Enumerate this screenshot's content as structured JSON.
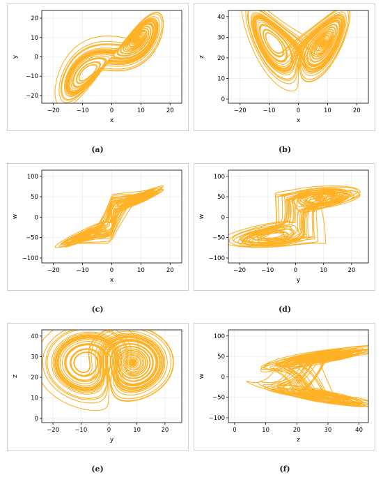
{
  "chart_data": [
    {
      "type": "line",
      "id": "a",
      "caption": "(a)",
      "xlabel": "x",
      "ylabel": "y",
      "xlim": [
        -24,
        24
      ],
      "ylim": [
        -24,
        24
      ],
      "xticks": [
        -20,
        -10,
        0,
        10,
        20
      ],
      "yticks": [
        -20,
        -10,
        0,
        10,
        20
      ],
      "grid": true,
      "series": [
        {
          "values": "phase-portrait",
          "color": "#FFA500",
          "curve": "lorenz-xy"
        }
      ]
    },
    {
      "type": "line",
      "id": "b",
      "caption": "(b)",
      "xlabel": "x",
      "ylabel": "z",
      "xlim": [
        -24,
        24
      ],
      "ylim": [
        -2,
        43
      ],
      "xticks": [
        -20,
        -10,
        0,
        10,
        20
      ],
      "yticks": [
        0,
        10,
        20,
        30,
        40
      ],
      "grid": true,
      "series": [
        {
          "values": "phase-portrait",
          "color": "#FFA500",
          "curve": "lorenz-xz"
        }
      ]
    },
    {
      "type": "line",
      "id": "c",
      "caption": "(c)",
      "xlabel": "x",
      "ylabel": "w",
      "xlim": [
        -24,
        24
      ],
      "ylim": [
        -112,
        115
      ],
      "xticks": [
        -20,
        -10,
        0,
        10,
        20
      ],
      "yticks": [
        -100,
        -50,
        0,
        50,
        100
      ],
      "grid": true,
      "series": [
        {
          "values": "phase-portrait",
          "color": "#FFA500",
          "curve": "hyper-xw"
        }
      ]
    },
    {
      "type": "line",
      "id": "d",
      "caption": "(d)",
      "xlabel": "y",
      "ylabel": "w",
      "xlim": [
        -24,
        26
      ],
      "ylim": [
        -112,
        115
      ],
      "xticks": [
        -20,
        -10,
        0,
        10,
        20
      ],
      "yticks": [
        -100,
        -50,
        0,
        50,
        100
      ],
      "grid": true,
      "series": [
        {
          "values": "phase-portrait",
          "color": "#FFA500",
          "curve": "hyper-yw"
        }
      ]
    },
    {
      "type": "line",
      "id": "e",
      "caption": "(e)",
      "xlabel": "y",
      "ylabel": "z",
      "xlim": [
        -24,
        26
      ],
      "ylim": [
        -2,
        43
      ],
      "xticks": [
        -20,
        -10,
        0,
        10,
        20
      ],
      "yticks": [
        0,
        10,
        20,
        30,
        40
      ],
      "grid": true,
      "series": [
        {
          "values": "phase-portrait",
          "color": "#FFA500",
          "curve": "lorenz-yz"
        }
      ]
    },
    {
      "type": "line",
      "id": "f",
      "caption": "(f)",
      "xlabel": "z",
      "ylabel": "w",
      "xlim": [
        -2,
        43
      ],
      "ylim": [
        -112,
        115
      ],
      "xticks": [
        0,
        10,
        20,
        30,
        40
      ],
      "yticks": [
        -100,
        -50,
        0,
        50,
        100
      ],
      "grid": true,
      "series": [
        {
          "values": "phase-portrait",
          "color": "#FFA500",
          "curve": "hyper-zw"
        }
      ]
    }
  ]
}
